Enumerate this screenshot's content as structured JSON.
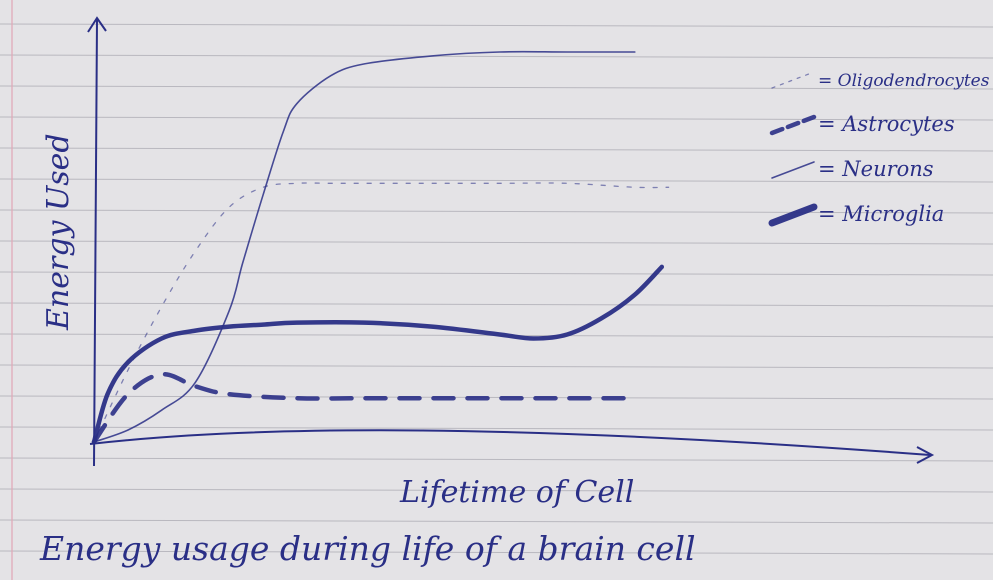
{
  "chart_data": {
    "type": "line",
    "xlabel": "Lifetime of Cell",
    "ylabel": "Energy Used",
    "caption": "Energy usage during life of a brain cell",
    "xlim": [
      0,
      100
    ],
    "ylim": [
      0,
      100
    ],
    "grid": false,
    "legend_position": "top-right",
    "series": [
      {
        "name": "= Oligodendrocytes",
        "style": "dotted",
        "x": [
          0,
          5,
          10,
          15,
          20,
          25,
          30,
          35,
          40,
          50,
          60,
          70,
          80,
          85
        ],
        "y": [
          0,
          18,
          34,
          48,
          59,
          64,
          65,
          65,
          65,
          65,
          65,
          65,
          64,
          64
        ]
      },
      {
        "name": "= Astrocytes",
        "style": "dashed",
        "x": [
          0,
          5,
          10,
          15,
          20,
          30,
          40,
          50,
          60,
          70,
          80
        ],
        "y": [
          0,
          12,
          17,
          14,
          12,
          11,
          11,
          11,
          11,
          11,
          11
        ]
      },
      {
        "name": "= Neurons",
        "style": "thin",
        "x": [
          0,
          5,
          10,
          15,
          20,
          22,
          25,
          28,
          30,
          35,
          40,
          50,
          60,
          70,
          80
        ],
        "y": [
          0,
          3,
          8,
          15,
          33,
          45,
          62,
          78,
          85,
          92,
          95,
          97,
          98,
          98,
          98
        ]
      },
      {
        "name": "= Microglia",
        "style": "thick",
        "x": [
          0,
          2,
          5,
          10,
          15,
          20,
          25,
          30,
          40,
          50,
          60,
          65,
          70,
          75,
          80,
          84
        ],
        "y": [
          0,
          12,
          20,
          26,
          28,
          29,
          29.5,
          30,
          30,
          29,
          27,
          26,
          27,
          31,
          37,
          44
        ]
      }
    ]
  },
  "colors": {
    "ink": "#2a2f86",
    "paper": "#e4e3e6",
    "rule_line": "#b9b8bf",
    "margin_line": "#e2a7b6"
  }
}
